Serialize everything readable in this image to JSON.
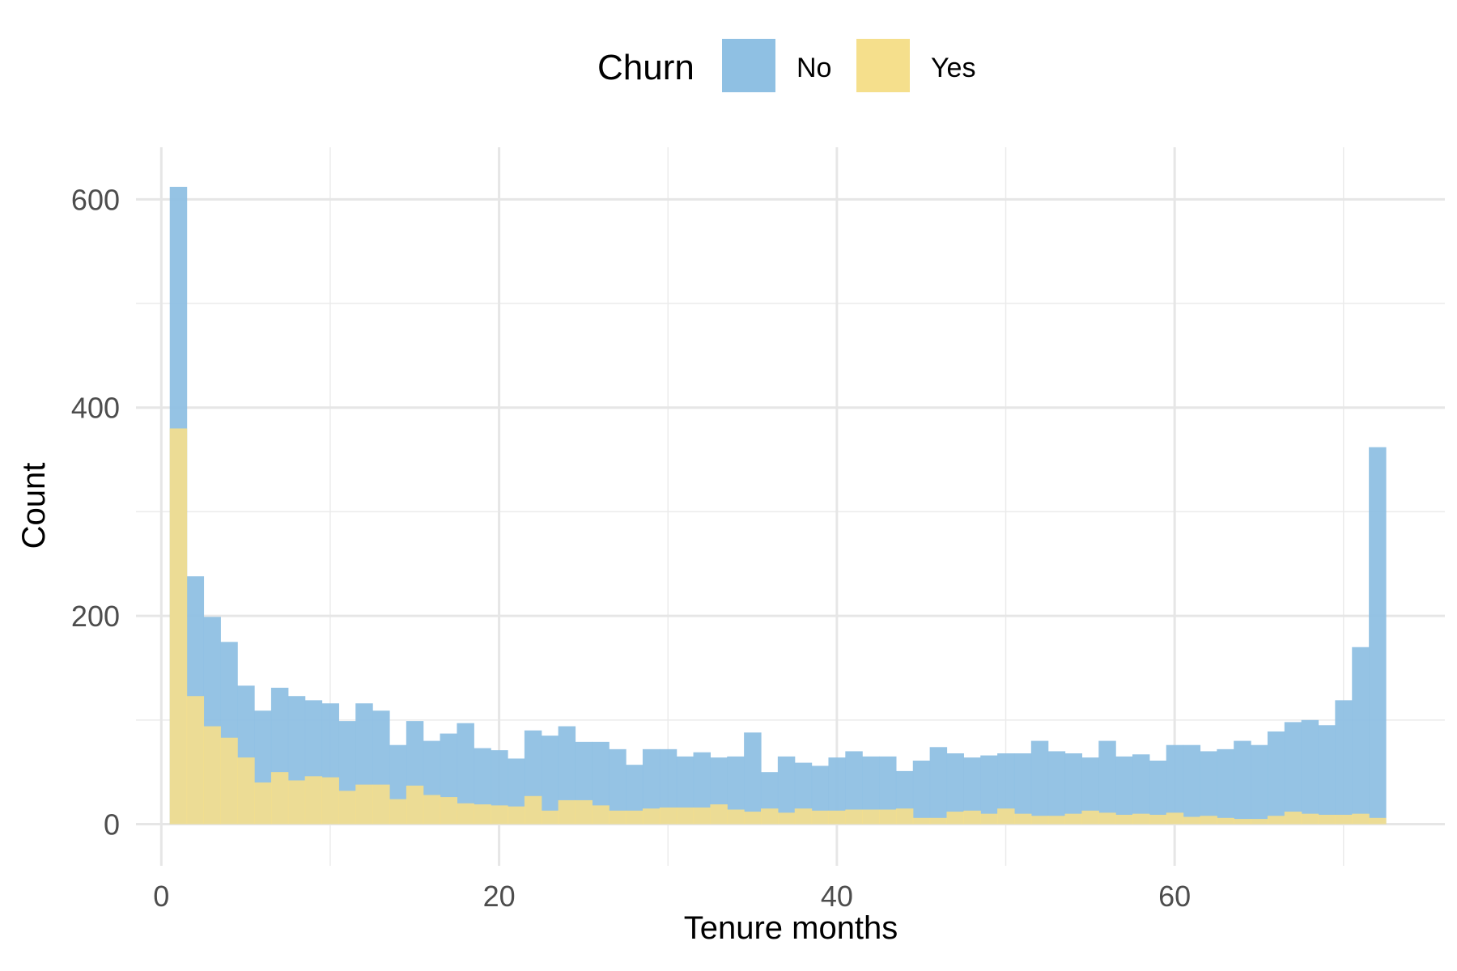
{
  "chart_data": {
    "type": "histogram",
    "xlabel": "Tenure months",
    "ylabel": "Count",
    "xlim": [
      -1.5,
      76
    ],
    "ylim": [
      -40,
      650
    ],
    "x_ticks": [
      0,
      20,
      40,
      60
    ],
    "y_ticks": [
      0,
      200,
      400,
      600
    ],
    "grid": true,
    "legend": {
      "title": "Churn",
      "position": "top"
    },
    "bin_width": 1,
    "bins_start": [
      0.5,
      1.5,
      2.5,
      3.5,
      4.5,
      5.5,
      6.5,
      7.5,
      8.5,
      9.5,
      10.5,
      11.5,
      12.5,
      13.5,
      14.5,
      15.5,
      16.5,
      17.5,
      18.5,
      19.5,
      20.5,
      21.5,
      22.5,
      23.5,
      24.5,
      25.5,
      26.5,
      27.5,
      28.5,
      29.5,
      30.5,
      31.5,
      32.5,
      33.5,
      34.5,
      35.5,
      36.5,
      37.5,
      38.5,
      39.5,
      40.5,
      41.5,
      42.5,
      43.5,
      44.5,
      45.5,
      46.5,
      47.5,
      48.5,
      49.5,
      50.5,
      51.5,
      52.5,
      53.5,
      54.5,
      55.5,
      56.5,
      57.5,
      58.5,
      59.5,
      60.5,
      61.5,
      62.5,
      63.5,
      64.5,
      65.5,
      66.5,
      67.5,
      68.5,
      69.5,
      70.5,
      71.5
    ],
    "series": [
      {
        "name": "No",
        "color": "#8fc0e3",
        "values": [
          612,
          238,
          199,
          175,
          133,
          109,
          131,
          123,
          119,
          116,
          99,
          116,
          109,
          76,
          99,
          80,
          87,
          97,
          73,
          71,
          63,
          90,
          85,
          94,
          79,
          79,
          72,
          57,
          72,
          72,
          65,
          69,
          64,
          65,
          88,
          50,
          65,
          59,
          56,
          64,
          70,
          65,
          65,
          51,
          61,
          74,
          68,
          64,
          66,
          68,
          68,
          80,
          70,
          68,
          64,
          80,
          65,
          67,
          61,
          76,
          76,
          70,
          72,
          80,
          76,
          89,
          98,
          100,
          95,
          119,
          170,
          362
        ]
      },
      {
        "name": "Yes",
        "color": "#f5df8c",
        "values": [
          380,
          123,
          94,
          83,
          64,
          40,
          50,
          42,
          46,
          45,
          32,
          38,
          38,
          24,
          37,
          28,
          26,
          20,
          19,
          18,
          17,
          27,
          13,
          23,
          23,
          18,
          13,
          13,
          15,
          16,
          16,
          16,
          19,
          14,
          12,
          15,
          11,
          15,
          13,
          13,
          14,
          14,
          14,
          15,
          6,
          6,
          12,
          13,
          10,
          15,
          10,
          8,
          8,
          10,
          13,
          11,
          9,
          10,
          9,
          11,
          7,
          8,
          6,
          5,
          5,
          8,
          12,
          10,
          9,
          9,
          10,
          6
        ]
      }
    ]
  }
}
